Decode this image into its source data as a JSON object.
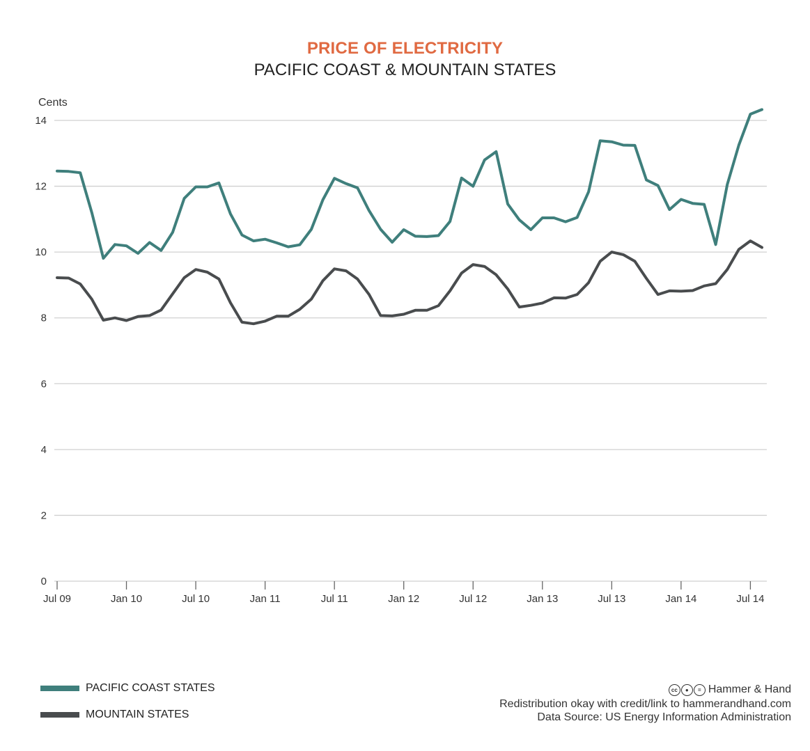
{
  "header": {
    "title": "PRICE OF ELECTRICITY",
    "subtitle": "PACIFIC COAST & MOUNTAIN STATES"
  },
  "colors": {
    "title": "#E06A42",
    "pacific": "#3F7F7C",
    "mountain": "#494C4E",
    "grid": "#D0D0D0",
    "axis": "#666666"
  },
  "chart_data": {
    "type": "line",
    "ylabel": "Cents",
    "xlabel": "",
    "ylim": [
      0,
      14
    ],
    "yticks": [
      0,
      2,
      4,
      6,
      8,
      10,
      12,
      14
    ],
    "grid": true,
    "legend_position": "bottom-left",
    "x": [
      "Jul 09",
      "Aug 09",
      "Sep 09",
      "Oct 09",
      "Nov 09",
      "Dec 09",
      "Jan 10",
      "Feb 10",
      "Mar 10",
      "Apr 10",
      "May 10",
      "Jun 10",
      "Jul 10",
      "Aug 10",
      "Sep 10",
      "Oct 10",
      "Nov 10",
      "Dec 10",
      "Jan 11",
      "Feb 11",
      "Mar 11",
      "Apr 11",
      "May 11",
      "Jun 11",
      "Jul 11",
      "Aug 11",
      "Sep 11",
      "Oct 11",
      "Nov 11",
      "Dec 11",
      "Jan 12",
      "Feb 12",
      "Mar 12",
      "Apr 12",
      "May 12",
      "Jun 12",
      "Jul 12",
      "Aug 12",
      "Sep 12",
      "Oct 12",
      "Nov 12",
      "Dec 12",
      "Jan 13",
      "Feb 13",
      "Mar 13",
      "Apr 13",
      "May 13",
      "Jun 13",
      "Jul 13",
      "Aug 13",
      "Sep 13",
      "Oct 13",
      "Nov 13",
      "Dec 13",
      "Jan 14",
      "Feb 14",
      "Mar 14",
      "Apr 14",
      "May 14",
      "Jun 14",
      "Jul 14",
      "Aug 14"
    ],
    "xtick_labels": [
      "Jul 09",
      "Jan 10",
      "Jul 10",
      "Jan 11",
      "Jul 11",
      "Jan 12",
      "Jul 12",
      "Jan 13",
      "Jul 13",
      "Jan 14",
      "Jul 14"
    ],
    "xtick_positions": [
      "Jul 09",
      "Jan 10",
      "Jul 10",
      "Jan 11",
      "Jul 11",
      "Jan 12",
      "Jul 12",
      "Jan 13",
      "Jul 13",
      "Jan 14",
      "Jul 14"
    ],
    "series": [
      {
        "name": "PACIFIC COAST STATES",
        "color_key": "pacific",
        "values": [
          12.46,
          12.45,
          12.41,
          11.2,
          9.81,
          10.23,
          10.19,
          9.96,
          10.29,
          10.05,
          10.6,
          11.63,
          11.98,
          11.98,
          12.1,
          11.16,
          10.52,
          10.34,
          10.39,
          10.28,
          10.16,
          10.22,
          10.69,
          11.59,
          12.24,
          12.08,
          11.95,
          11.26,
          10.69,
          10.3,
          10.68,
          10.48,
          10.47,
          10.5,
          10.93,
          12.25,
          12.0,
          12.8,
          13.05,
          11.46,
          10.98,
          10.68,
          11.04,
          11.04,
          10.92,
          11.05,
          11.83,
          13.38,
          13.35,
          13.25,
          13.24,
          12.19,
          12.02,
          11.29,
          11.6,
          11.48,
          11.45,
          10.23,
          12.05,
          13.25,
          14.19,
          14.33
        ]
      },
      {
        "name": "MOUNTAIN STATES",
        "color_key": "mountain",
        "values": [
          9.22,
          9.21,
          9.03,
          8.57,
          7.93,
          8.0,
          7.92,
          8.04,
          8.07,
          8.24,
          8.73,
          9.22,
          9.47,
          9.39,
          9.18,
          8.46,
          7.87,
          7.82,
          7.9,
          8.05,
          8.05,
          8.26,
          8.57,
          9.13,
          9.49,
          9.43,
          9.18,
          8.71,
          8.07,
          8.06,
          8.11,
          8.23,
          8.23,
          8.37,
          8.82,
          9.36,
          9.62,
          9.56,
          9.31,
          8.88,
          8.33,
          8.38,
          8.45,
          8.61,
          8.6,
          8.71,
          9.07,
          9.72,
          10.0,
          9.92,
          9.72,
          9.2,
          8.71,
          8.82,
          8.81,
          8.83,
          8.97,
          9.04,
          9.47,
          10.08,
          10.34,
          10.14
        ]
      }
    ]
  },
  "legend": {
    "items": [
      {
        "label": "PACIFIC COAST STATES"
      },
      {
        "label": "MOUNTAIN STATES"
      }
    ]
  },
  "credits": {
    "brand": "Hammer & Hand",
    "line1": "Redistribution okay with credit/link to hammerandhand.com",
    "line2": "Data Source: US Energy Information Administration",
    "license_icons": [
      "cc",
      "by",
      "="
    ]
  }
}
